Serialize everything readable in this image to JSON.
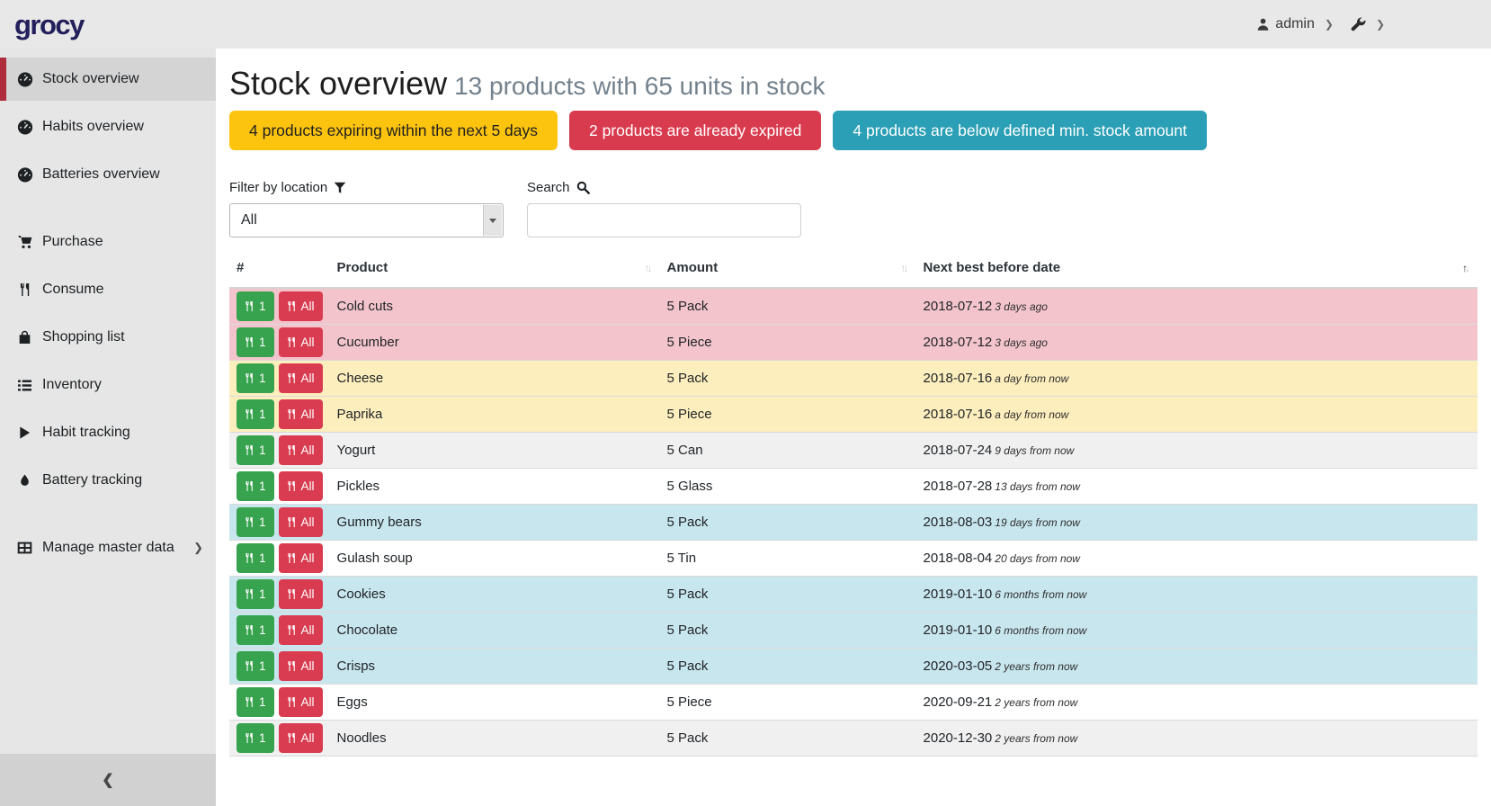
{
  "topbar": {
    "logo": "grocy",
    "user": "admin"
  },
  "sidebar": {
    "items": [
      {
        "label": "Stock overview",
        "icon": "tachometer",
        "active": true
      },
      {
        "label": "Habits overview",
        "icon": "tachometer"
      },
      {
        "label": "Batteries overview",
        "icon": "tachometer"
      },
      {
        "label": "Purchase",
        "icon": "cart",
        "gap_before": true
      },
      {
        "label": "Consume",
        "icon": "utensils"
      },
      {
        "label": "Shopping list",
        "icon": "bag"
      },
      {
        "label": "Inventory",
        "icon": "list"
      },
      {
        "label": "Habit tracking",
        "icon": "play"
      },
      {
        "label": "Battery tracking",
        "icon": "droplet"
      },
      {
        "label": "Manage master data",
        "icon": "table",
        "chevron": true,
        "gap_before": true
      }
    ]
  },
  "page": {
    "title": "Stock overview",
    "subtitle": "13 products with 65 units in stock"
  },
  "badges": [
    {
      "label": "4 products expiring within the next 5 days",
      "bg": "#fdc40f",
      "fg": "#212121"
    },
    {
      "label": "2 products are already expired",
      "bg": "#d93b4e",
      "fg": "#ffffff"
    },
    {
      "label": "4 products are below defined min. stock amount",
      "bg": "#2a9fb5",
      "fg": "#ffffff"
    }
  ],
  "filter": {
    "label": "Filter by location",
    "value": "All"
  },
  "search": {
    "label": "Search",
    "value": "",
    "placeholder": ""
  },
  "table": {
    "columns": [
      "#",
      "Product",
      "Amount",
      "Next best before date"
    ],
    "sorted_column": "Next best before date",
    "sort_direction": "asc",
    "buttons": {
      "consume_one": "1",
      "consume_all": "All"
    },
    "rows": [
      {
        "product": "Cold cuts",
        "amount": "5 Pack",
        "date": "2018-07-12",
        "relative": "3 days ago",
        "status": "expired"
      },
      {
        "product": "Cucumber",
        "amount": "5 Piece",
        "date": "2018-07-12",
        "relative": "3 days ago",
        "status": "expired"
      },
      {
        "product": "Cheese",
        "amount": "5 Pack",
        "date": "2018-07-16",
        "relative": "a day from now",
        "status": "expiring"
      },
      {
        "product": "Paprika",
        "amount": "5 Piece",
        "date": "2018-07-16",
        "relative": "a day from now",
        "status": "expiring"
      },
      {
        "product": "Yogurt",
        "amount": "5 Can",
        "date": "2018-07-24",
        "relative": "9 days from now",
        "status": "none"
      },
      {
        "product": "Pickles",
        "amount": "5 Glass",
        "date": "2018-07-28",
        "relative": "13 days from now",
        "status": "none"
      },
      {
        "product": "Gummy bears",
        "amount": "5 Pack",
        "date": "2018-08-03",
        "relative": "19 days from now",
        "status": "belowmin"
      },
      {
        "product": "Gulash soup",
        "amount": "5 Tin",
        "date": "2018-08-04",
        "relative": "20 days from now",
        "status": "none"
      },
      {
        "product": "Cookies",
        "amount": "5 Pack",
        "date": "2019-01-10",
        "relative": "6 months from now",
        "status": "belowmin"
      },
      {
        "product": "Chocolate",
        "amount": "5 Pack",
        "date": "2019-01-10",
        "relative": "6 months from now",
        "status": "belowmin"
      },
      {
        "product": "Crisps",
        "amount": "5 Pack",
        "date": "2020-03-05",
        "relative": "2 years from now",
        "status": "belowmin"
      },
      {
        "product": "Eggs",
        "amount": "5 Piece",
        "date": "2020-09-21",
        "relative": "2 years from now",
        "status": "none"
      },
      {
        "product": "Noodles",
        "amount": "5 Pack",
        "date": "2020-12-30",
        "relative": "2 years from now",
        "status": "none"
      }
    ]
  },
  "colors": {
    "accent_red": "#ae2c3c",
    "badge_yellow": "#fdc40f",
    "badge_red": "#d93b4e",
    "badge_teal": "#2a9fb5",
    "row_expired": "#f3c4cc",
    "row_expiring": "#fdeebd",
    "row_below_min": "#c8e6ee",
    "button_green": "#37a34e",
    "button_red": "#d93c50"
  }
}
